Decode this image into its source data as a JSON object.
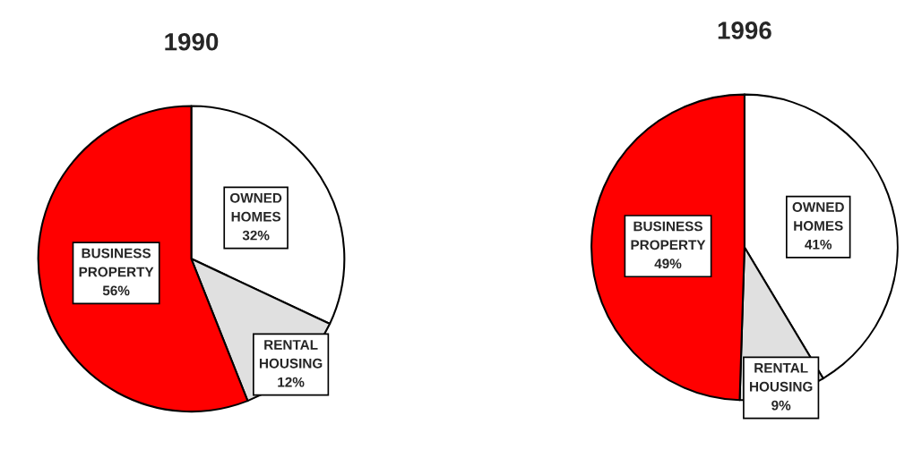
{
  "chart_data": [
    {
      "type": "pie",
      "title": "1990",
      "categories": [
        "OWNED\nHOMES",
        "RENTAL\nHOUSING",
        "BUSINESS\nPROPERTY"
      ],
      "values": [
        32,
        12,
        56
      ],
      "value_labels": [
        "32%",
        "12%",
        "56%"
      ],
      "colors": [
        "#ffffff",
        "#e0e0e0",
        "#ff0000"
      ]
    },
    {
      "type": "pie",
      "title": "1996",
      "categories": [
        "OWNED\nHOMES",
        "RENTAL\nHOUSING",
        "BUSINESS\nPROPERTY"
      ],
      "values": [
        41,
        9,
        49
      ],
      "value_labels": [
        "41%",
        "9%",
        "49%"
      ],
      "colors": [
        "#ffffff",
        "#e0e0e0",
        "#ff0000"
      ]
    }
  ]
}
